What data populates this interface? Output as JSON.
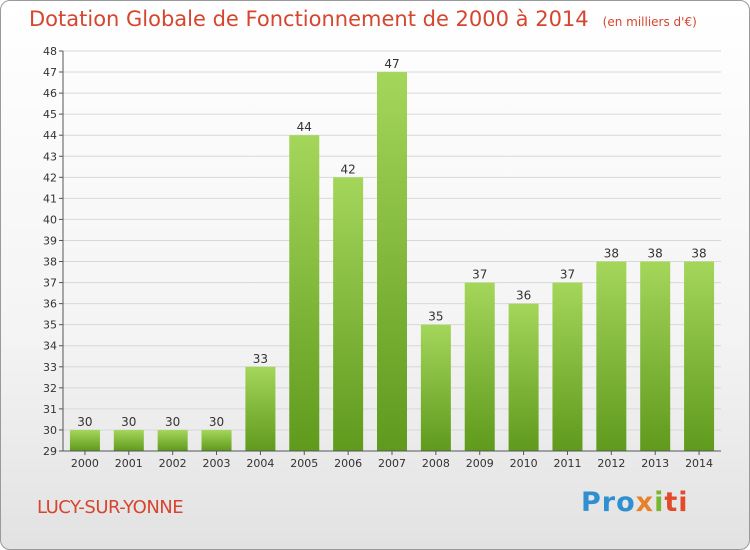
{
  "title": "Dotation Globale de Fonctionnement de 2000 à 2014",
  "unit": "(en milliers d'€)",
  "commune": "LUCY-SUR-YONNE",
  "logo": {
    "p1": "Pro",
    "p2": "x",
    "p3": "i",
    "p4": "ti"
  },
  "colors": {
    "title": "#d6452e",
    "bar_top": "#a4d65a",
    "bar_bottom": "#5f9a1d",
    "grid": "#d8d8d8"
  },
  "chart_data": {
    "type": "bar",
    "title": "Dotation Globale de Fonctionnement de 2000 à 2014",
    "subtitle": "(en milliers d'€)",
    "xlabel": "",
    "ylabel": "",
    "categories": [
      "2000",
      "2001",
      "2002",
      "2003",
      "2004",
      "2005",
      "2006",
      "2007",
      "2008",
      "2009",
      "2010",
      "2011",
      "2012",
      "2013",
      "2014"
    ],
    "values": [
      30,
      30,
      30,
      30,
      33,
      44,
      42,
      47,
      35,
      37,
      36,
      37,
      38,
      38,
      38
    ],
    "ylim": [
      29,
      48
    ],
    "yticks": [
      29,
      30,
      31,
      32,
      33,
      34,
      35,
      36,
      37,
      38,
      39,
      40,
      41,
      42,
      43,
      44,
      45,
      46,
      47,
      48
    ],
    "grid": true,
    "data_labels": true
  }
}
